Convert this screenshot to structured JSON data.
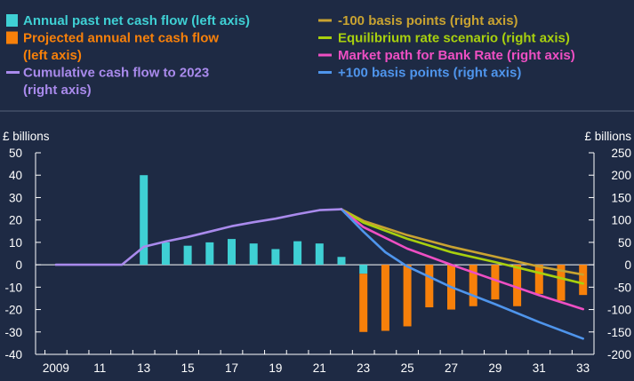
{
  "chart_data": {
    "type": "bar",
    "y_left": {
      "label": "£ billions",
      "ylim": [
        -40,
        50
      ],
      "ticks": [
        50,
        40,
        30,
        20,
        10,
        0,
        -10,
        -20,
        -30,
        -40
      ]
    },
    "y_right": {
      "label": "£ billions",
      "ylim": [
        -200,
        250
      ],
      "ticks": [
        250,
        200,
        150,
        100,
        50,
        0,
        -50,
        -100,
        -150,
        -200
      ]
    },
    "x_tick_labels": [
      "2009",
      "11",
      "13",
      "15",
      "17",
      "19",
      "21",
      "23",
      "25",
      "27",
      "29",
      "31",
      "33"
    ],
    "x_tick_years": [
      2009,
      2011,
      2013,
      2015,
      2017,
      2019,
      2021,
      2023,
      2025,
      2027,
      2029,
      2031,
      2033
    ],
    "bar_series": [
      {
        "name": "Annual past net cash flow (left axis)",
        "color": "#3fd0d4",
        "axis": "left",
        "points": [
          {
            "x": 2013,
            "y": 40
          },
          {
            "x": 2014,
            "y": 10
          },
          {
            "x": 2015,
            "y": 8.5
          },
          {
            "x": 2016,
            "y": 10
          },
          {
            "x": 2017,
            "y": 11.5
          },
          {
            "x": 2018,
            "y": 9.5
          },
          {
            "x": 2019,
            "y": 7
          },
          {
            "x": 2020,
            "y": 10.5
          },
          {
            "x": 2021,
            "y": 9.5
          },
          {
            "x": 2022,
            "y": 3.5
          },
          {
            "x": 2023,
            "y": -4
          }
        ]
      },
      {
        "name": "Projected annual net cash flow (left axis)",
        "color": "#f7800a",
        "axis": "left",
        "points": [
          {
            "x": 2023,
            "y": -30,
            "y0": -4
          },
          {
            "x": 2024,
            "y": -29.5
          },
          {
            "x": 2025,
            "y": -27.5
          },
          {
            "x": 2026,
            "y": -19
          },
          {
            "x": 2027,
            "y": -20
          },
          {
            "x": 2028,
            "y": -18.5
          },
          {
            "x": 2029,
            "y": -15.5
          },
          {
            "x": 2030,
            "y": -18.5
          },
          {
            "x": 2031,
            "y": -13
          },
          {
            "x": 2032,
            "y": -16
          },
          {
            "x": 2033,
            "y": -13.5
          }
        ]
      }
    ],
    "line_series": [
      {
        "name": "Cumulative cash flow to 2023 (right axis)",
        "color": "#a98aec",
        "axis": "right",
        "points": [
          {
            "x": 2009,
            "y": 0
          },
          {
            "x": 2012,
            "y": 0
          },
          {
            "x": 2013,
            "y": 40
          },
          {
            "x": 2014,
            "y": 52
          },
          {
            "x": 2015,
            "y": 62
          },
          {
            "x": 2016,
            "y": 74
          },
          {
            "x": 2017,
            "y": 86
          },
          {
            "x": 2018,
            "y": 95
          },
          {
            "x": 2019,
            "y": 103
          },
          {
            "x": 2020,
            "y": 113
          },
          {
            "x": 2021,
            "y": 122
          },
          {
            "x": 2022,
            "y": 124
          }
        ]
      },
      {
        "name": "-100 basis points (right axis)",
        "color": "#c9a331",
        "axis": "right",
        "points": [
          {
            "x": 2022,
            "y": 124
          },
          {
            "x": 2023,
            "y": 98
          },
          {
            "x": 2025,
            "y": 66
          },
          {
            "x": 2027,
            "y": 40
          },
          {
            "x": 2029,
            "y": 18
          },
          {
            "x": 2031,
            "y": -4
          },
          {
            "x": 2033,
            "y": -22
          }
        ]
      },
      {
        "name": "Equilibrium rate scenario (right axis)",
        "color": "#a8d00e",
        "axis": "right",
        "points": [
          {
            "x": 2022,
            "y": 124
          },
          {
            "x": 2023,
            "y": 94
          },
          {
            "x": 2025,
            "y": 58
          },
          {
            "x": 2027,
            "y": 28
          },
          {
            "x": 2029,
            "y": 6
          },
          {
            "x": 2031,
            "y": -18
          },
          {
            "x": 2033,
            "y": -42
          }
        ]
      },
      {
        "name": "Market path for Bank Rate (right axis)",
        "color": "#ee4fc3",
        "axis": "right",
        "points": [
          {
            "x": 2022,
            "y": 124
          },
          {
            "x": 2023,
            "y": 84
          },
          {
            "x": 2025,
            "y": 36
          },
          {
            "x": 2027,
            "y": 0
          },
          {
            "x": 2029,
            "y": -34
          },
          {
            "x": 2031,
            "y": -68
          },
          {
            "x": 2033,
            "y": -99
          }
        ]
      },
      {
        "name": "+100 basis points (right axis)",
        "color": "#4f95ec",
        "axis": "right",
        "points": [
          {
            "x": 2022,
            "y": 124
          },
          {
            "x": 2023,
            "y": 74
          },
          {
            "x": 2024,
            "y": 28
          },
          {
            "x": 2025,
            "y": -4
          },
          {
            "x": 2027,
            "y": -50
          },
          {
            "x": 2029,
            "y": -88
          },
          {
            "x": 2031,
            "y": -128
          },
          {
            "x": 2033,
            "y": -165
          }
        ]
      }
    ],
    "legend": {
      "placement": "top",
      "left": [
        {
          "kind": "box",
          "color": "#3fd0d4",
          "lines": [
            "Annual past net cash flow (left axis)"
          ]
        },
        {
          "kind": "box",
          "color": "#f7800a",
          "lines": [
            "Projected annual net cash flow",
            "(left axis)"
          ]
        },
        {
          "kind": "line",
          "color": "#a98aec",
          "lines": [
            "Cumulative cash flow to 2023",
            "(right axis)"
          ]
        }
      ],
      "right": [
        {
          "kind": "line",
          "color": "#c9a331",
          "lines": [
            "-100 basis points (right axis)"
          ]
        },
        {
          "kind": "line",
          "color": "#a8d00e",
          "lines": [
            "Equilibrium rate scenario (right axis)"
          ]
        },
        {
          "kind": "line",
          "color": "#ee4fc3",
          "lines": [
            "Market path for Bank Rate (right axis)"
          ]
        },
        {
          "kind": "line",
          "color": "#4f95ec",
          "lines": [
            "+100 basis points (right axis)"
          ]
        }
      ]
    },
    "grid": false,
    "colors": {
      "background": "#1e2a44",
      "text": "#ffffff",
      "axis": "#ffffff"
    }
  }
}
